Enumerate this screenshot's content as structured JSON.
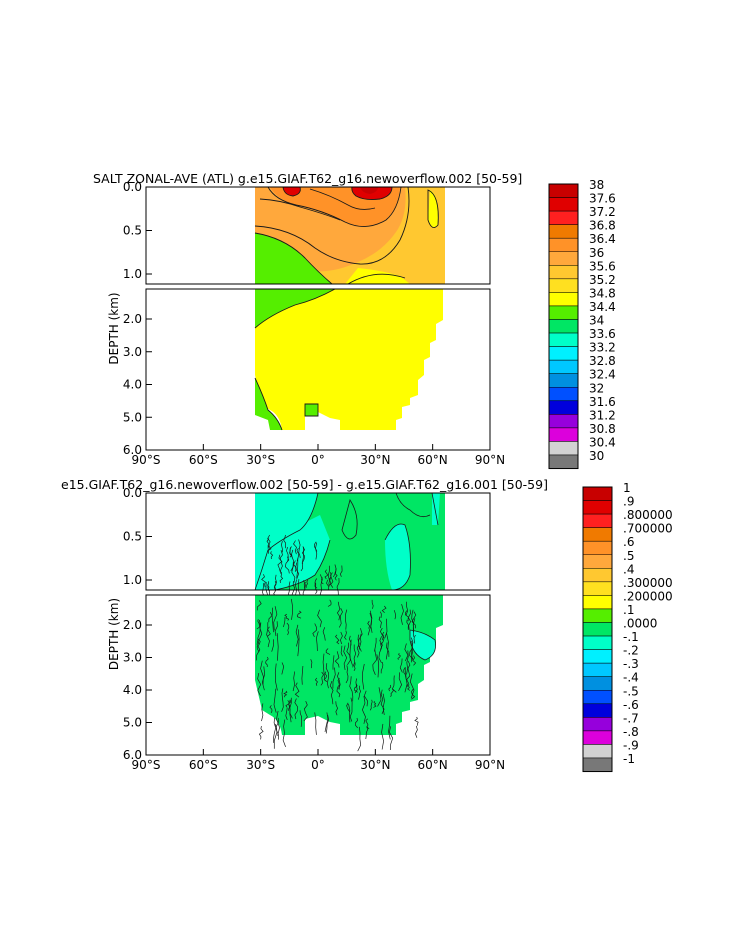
{
  "chart_data": [
    {
      "type": "heatmap",
      "title": "SALT ZONAL-AVE (ATL)   g.e15.GIAF.T62_g16.newoverflow.002   [50-59]",
      "ylabel": "DEPTH (km)",
      "x_ticks": [
        "90°S",
        "60°S",
        "30°S",
        "0°",
        "30°N",
        "60°N",
        "90°N"
      ],
      "x_values": [
        -90,
        -60,
        -30,
        0,
        30,
        60,
        90
      ],
      "xlim": [
        -90,
        90
      ],
      "y_upper_ticks": [
        "0.0",
        "0.5",
        "1.0"
      ],
      "y_upper_values": [
        0.0,
        0.5,
        1.0
      ],
      "y_lower_ticks": [
        "2.0",
        "3.0",
        "4.0",
        "5.0",
        "6.0"
      ],
      "y_lower_values": [
        2.0,
        3.0,
        4.0,
        5.0,
        6.0
      ],
      "ylim": [
        0,
        6
      ],
      "colorbar": {
        "labels": [
          "38",
          "37.6",
          "37.2",
          "36.8",
          "36.4",
          "36",
          "35.6",
          "35.2",
          "34.8",
          "34.4",
          "34",
          "33.6",
          "33.2",
          "32.8",
          "32.4",
          "32",
          "31.6",
          "31.2",
          "30.8",
          "30.4",
          "30"
        ],
        "colors": [
          "#c80000",
          "#e00000",
          "#ff2020",
          "#f07a00",
          "#ff9228",
          "#ffa83c",
          "#ffc830",
          "#ffe020",
          "#ffff00",
          "#55ee00",
          "#00e664",
          "#00ffc8",
          "#00f0ff",
          "#00c8ff",
          "#0090e0",
          "#0050ff",
          "#0000dc",
          "#9600dc",
          "#dc00dc",
          "#d2d2d2",
          "#787878"
        ]
      }
    },
    {
      "type": "heatmap",
      "title": "e15.GIAF.T62_g16.newoverflow.002 [50-59] - g.e15.GIAF.T62_g16.001 [50-59]",
      "ylabel": "DEPTH (km)",
      "x_ticks": [
        "90°S",
        "60°S",
        "30°S",
        "0°",
        "30°N",
        "60°N",
        "90°N"
      ],
      "x_values": [
        -90,
        -60,
        -30,
        0,
        30,
        60,
        90
      ],
      "xlim": [
        -90,
        90
      ],
      "y_upper_ticks": [
        "0.0",
        "0.5",
        "1.0"
      ],
      "y_upper_values": [
        0.0,
        0.5,
        1.0
      ],
      "y_lower_ticks": [
        "2.0",
        "3.0",
        "4.0",
        "5.0",
        "6.0"
      ],
      "y_lower_values": [
        2.0,
        3.0,
        4.0,
        5.0,
        6.0
      ],
      "ylim": [
        0,
        6
      ],
      "colorbar": {
        "labels": [
          "1",
          ".9",
          ".800000",
          ".700000",
          ".6",
          ".5",
          ".4",
          ".300000",
          ".200000",
          ".1",
          ".0000",
          "-.1",
          "-.2",
          "-.3",
          "-.4",
          "-.5",
          "-.6",
          "-.7",
          "-.8",
          "-.9",
          "-1"
        ],
        "colors": [
          "#c80000",
          "#e00000",
          "#ff2020",
          "#f07a00",
          "#ff9228",
          "#ffa83c",
          "#ffc830",
          "#ffe020",
          "#ffff00",
          "#55ee00",
          "#00e664",
          "#00ffc8",
          "#00f0ff",
          "#00c8ff",
          "#0090e0",
          "#0050ff",
          "#0000dc",
          "#9600dc",
          "#dc00dc",
          "#d2d2d2",
          "#787878"
        ]
      }
    }
  ],
  "field_colors": {
    "red": "#e00000",
    "dark_red": "#c80000",
    "orange": "#ff9228",
    "light_orange": "#ffa83c",
    "gold": "#ffc830",
    "yellow": "#ffff00",
    "green": "#55ee00",
    "sea_green": "#00e664",
    "cyan": "#00ffc8",
    "contour": "#1a1a1a"
  }
}
